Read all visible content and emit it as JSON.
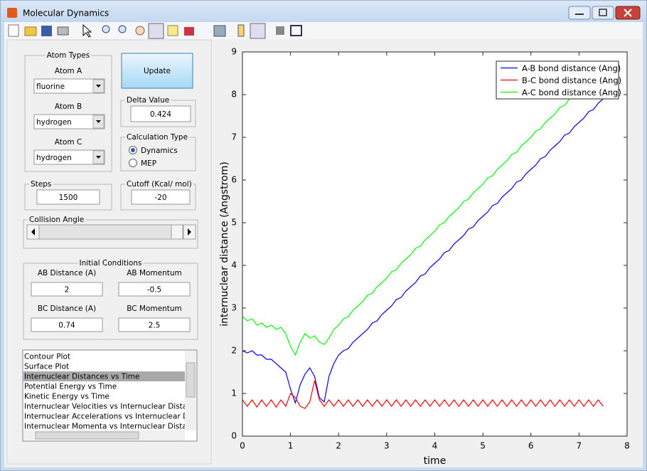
{
  "window": {
    "title": "Molecular Dynamics"
  },
  "atom_types": {
    "title": "Atom Types",
    "atoms": [
      {
        "label": "Atom A",
        "value": "fluorine"
      },
      {
        "label": "Atom B",
        "value": "hydrogen"
      },
      {
        "label": "Atom C",
        "value": "hydrogen"
      }
    ]
  },
  "update_button": "Update",
  "delta_value": {
    "title": "Delta Value",
    "value": "0.424"
  },
  "calculation_type": {
    "title": "Calculation Type",
    "options": [
      "Dynamics",
      "MEP"
    ],
    "selected": 0
  },
  "steps": {
    "title": "Steps",
    "value": "1500"
  },
  "cutoff": {
    "title": "Cutoff (Kcal/ mol)",
    "value": "-20"
  },
  "collision_angle": {
    "title": "Collision Angle"
  },
  "initial_conditions": {
    "title": "Initial Conditions",
    "fields": [
      {
        "label": "AB Distance (A)",
        "value": "2"
      },
      {
        "label": "AB Momentum",
        "value": "-0.5"
      },
      {
        "label": "BC Distance (A)",
        "value": "0.74"
      },
      {
        "label": "BC Momentum",
        "value": "2.5"
      }
    ]
  },
  "plot_list": {
    "items": [
      "Contour Plot",
      "Surface Plot",
      "Internuclear Distances vs Time",
      "Potential Energy vs Time",
      "Kinetic Energy vs Time",
      "Internuclear Velocities vs Internuclear Distance",
      "Internuclear Accelerations vs Internuclear Distance",
      "Internuclear Momenta vs Internuclear Distance"
    ],
    "selected": 2
  },
  "chart_data": {
    "type": "line",
    "xlabel": "time",
    "ylabel": "internuclear distance (Angstrom)",
    "xlim": [
      0,
      8
    ],
    "ylim": [
      0,
      9
    ],
    "xticks": [
      0,
      1,
      2,
      3,
      4,
      5,
      6,
      7,
      8
    ],
    "yticks": [
      0,
      1,
      2,
      3,
      4,
      5,
      6,
      7,
      8,
      9
    ],
    "legend": "upper right",
    "x": [
      0,
      0.1,
      0.2,
      0.3,
      0.4,
      0.5,
      0.6,
      0.7,
      0.8,
      0.9,
      1.0,
      1.1,
      1.2,
      1.3,
      1.4,
      1.5,
      1.6,
      1.7,
      1.8,
      1.9,
      2.0,
      2.1,
      2.2,
      2.3,
      2.4,
      2.5,
      2.6,
      2.7,
      2.8,
      2.9,
      3.0,
      3.1,
      3.2,
      3.3,
      3.4,
      3.5,
      3.6,
      3.7,
      3.8,
      3.9,
      4.0,
      4.1,
      4.2,
      4.3,
      4.4,
      4.5,
      4.6,
      4.7,
      4.8,
      4.9,
      5.0,
      5.1,
      5.2,
      5.3,
      5.4,
      5.5,
      5.6,
      5.7,
      5.8,
      5.9,
      6.0,
      6.1,
      6.2,
      6.3,
      6.4,
      6.5,
      6.6,
      6.7,
      6.8,
      6.9,
      7.0,
      7.1,
      7.2,
      7.3,
      7.4,
      7.5
    ],
    "series": [
      {
        "name": "A-B bond distance (Ang)",
        "color": "#0000ff",
        "values": [
          2.0,
          1.95,
          2.0,
          1.9,
          1.9,
          1.8,
          1.8,
          1.7,
          1.6,
          1.5,
          1.1,
          0.78,
          1.2,
          1.45,
          1.6,
          1.4,
          0.9,
          0.8,
          1.4,
          1.7,
          1.9,
          2.0,
          2.05,
          2.2,
          2.3,
          2.4,
          2.5,
          2.65,
          2.7,
          2.85,
          2.95,
          3.05,
          3.2,
          3.25,
          3.4,
          3.5,
          3.6,
          3.75,
          3.8,
          3.95,
          4.05,
          4.15,
          4.3,
          4.35,
          4.5,
          4.6,
          4.7,
          4.85,
          4.9,
          5.05,
          5.15,
          5.25,
          5.4,
          5.45,
          5.6,
          5.7,
          5.8,
          5.95,
          6.0,
          6.15,
          6.25,
          6.35,
          6.5,
          6.55,
          6.7,
          6.8,
          6.9,
          7.05,
          7.1,
          7.25,
          7.35,
          7.45,
          7.6,
          7.65,
          7.8,
          7.9
        ]
      },
      {
        "name": "B-C bond distance (Ang)",
        "color": "#ff0000",
        "values": [
          0.85,
          0.7,
          0.85,
          0.68,
          0.85,
          0.7,
          0.85,
          0.68,
          0.85,
          0.7,
          1.0,
          0.9,
          0.7,
          0.65,
          0.8,
          1.3,
          0.85,
          0.7,
          0.85,
          0.7,
          0.85,
          0.7,
          0.85,
          0.7,
          0.85,
          0.7,
          0.85,
          0.7,
          0.85,
          0.7,
          0.85,
          0.7,
          0.85,
          0.7,
          0.85,
          0.7,
          0.85,
          0.7,
          0.85,
          0.7,
          0.85,
          0.7,
          0.85,
          0.7,
          0.85,
          0.7,
          0.85,
          0.7,
          0.85,
          0.7,
          0.85,
          0.7,
          0.85,
          0.7,
          0.85,
          0.7,
          0.85,
          0.7,
          0.85,
          0.7,
          0.85,
          0.7,
          0.85,
          0.7,
          0.85,
          0.7,
          0.85,
          0.7,
          0.85,
          0.7,
          0.85,
          0.7,
          0.85,
          0.7,
          0.85,
          0.7
        ]
      },
      {
        "name": "A-C bond distance (Ang)",
        "color": "#00ff00",
        "values": [
          2.8,
          2.7,
          2.75,
          2.6,
          2.65,
          2.55,
          2.6,
          2.5,
          2.55,
          2.4,
          2.1,
          1.9,
          2.2,
          2.4,
          2.3,
          2.35,
          2.2,
          2.15,
          2.3,
          2.5,
          2.6,
          2.75,
          2.8,
          2.95,
          3.05,
          3.15,
          3.3,
          3.35,
          3.5,
          3.6,
          3.7,
          3.85,
          3.9,
          4.05,
          4.15,
          4.25,
          4.4,
          4.45,
          4.6,
          4.7,
          4.8,
          4.95,
          5.0,
          5.15,
          5.25,
          5.35,
          5.5,
          5.55,
          5.7,
          5.8,
          5.9,
          6.05,
          6.1,
          6.25,
          6.35,
          6.45,
          6.6,
          6.65,
          6.8,
          6.9,
          7.0,
          7.15,
          7.2,
          7.35,
          7.45,
          7.55,
          7.7,
          7.75,
          7.9,
          8.0,
          8.1,
          8.25,
          8.3,
          8.45,
          8.55,
          8.65
        ]
      }
    ]
  }
}
